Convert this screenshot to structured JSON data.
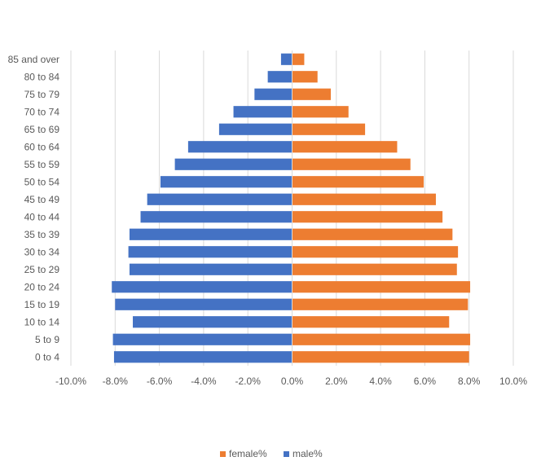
{
  "chart_data": {
    "type": "bar",
    "orientation": "horizontal",
    "title": "",
    "xlabel": "",
    "ylabel": "",
    "xlim": [
      -10,
      10
    ],
    "x_ticks": [
      -10,
      -8,
      -6,
      -4,
      -2,
      0,
      2,
      4,
      6,
      8,
      10
    ],
    "x_tick_labels": [
      "-10.0%",
      "-8.0%",
      "-6.0%",
      "-4.0%",
      "-2.0%",
      "0.0%",
      "2.0%",
      "4.0%",
      "6.0%",
      "8.0%",
      "10.0%"
    ],
    "grid": true,
    "legend_position": "bottom",
    "categories": [
      "85 and over",
      "80 to 84",
      "75 to 79",
      "70 to 74",
      "65 to 69",
      "60 to 64",
      "55 to 59",
      "50 to 54",
      "45 to 49",
      "40 to 44",
      "35 to 39",
      "30 to 34",
      "25 to 29",
      "20 to 24",
      "15 to 19",
      "10 to 14",
      "5 to 9",
      "0 to 4"
    ],
    "series": [
      {
        "name": "female%",
        "color": "#ED7D31",
        "values": [
          0.55,
          1.15,
          1.75,
          2.55,
          3.3,
          4.75,
          5.35,
          5.95,
          6.5,
          6.8,
          7.25,
          7.5,
          7.45,
          8.05,
          7.95,
          7.1,
          8.05,
          8.0
        ]
      },
      {
        "name": "male%",
        "color": "#4472C4",
        "values": [
          -0.5,
          -1.1,
          -1.7,
          -2.65,
          -3.3,
          -4.7,
          -5.3,
          -5.95,
          -6.55,
          -6.85,
          -7.35,
          -7.4,
          -7.35,
          -8.15,
          -8.0,
          -7.2,
          -8.1,
          -8.05
        ]
      }
    ],
    "legend": [
      "female%",
      "male%"
    ]
  }
}
